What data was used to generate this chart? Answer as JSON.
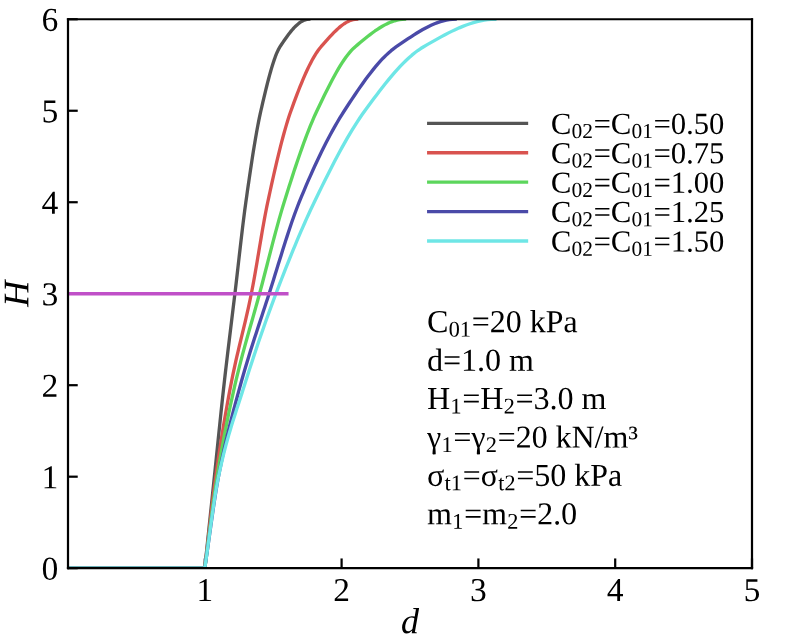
{
  "chart_data": {
    "type": "line",
    "xlabel": "d",
    "ylabel": "H",
    "xlim": [
      0,
      5
    ],
    "ylim": [
      0,
      6
    ],
    "xticks": [
      1,
      2,
      3,
      4,
      5
    ],
    "yticks": [
      0,
      1,
      2,
      3,
      4,
      5,
      6
    ],
    "grid": false,
    "legend": "top right",
    "marker": "none",
    "line_style": "solid",
    "series": [
      {
        "name": "C$_{02}$=C$_{01}$=0.50",
        "color": "#555555",
        "x": [
          0,
          1,
          1.07,
          1.14,
          1.22,
          1.3,
          1.41,
          1.55,
          1.76
        ],
        "values": [
          0,
          0,
          1,
          2,
          3,
          4,
          5,
          5.7,
          6
        ]
      },
      {
        "name": "C$_{02}$=C$_{01}$=0.75",
        "color": "#d9534f",
        "x": [
          0,
          1,
          1.08,
          1.19,
          1.34,
          1.46,
          1.63,
          1.85,
          2.11
        ],
        "values": [
          0,
          0,
          1,
          2,
          3,
          4,
          5,
          5.7,
          6
        ]
      },
      {
        "name": "C$_{02}$=C$_{01}$=1.00",
        "color": "#5cd65c",
        "x": [
          0,
          1,
          1.09,
          1.22,
          1.4,
          1.58,
          1.82,
          2.1,
          2.46
        ],
        "values": [
          0,
          0,
          1,
          2,
          3,
          4,
          5,
          5.7,
          6
        ]
      },
      {
        "name": "C$_{02}$=C$_{01}$=1.25",
        "color": "#4a4aa8",
        "x": [
          0,
          1,
          1.1,
          1.26,
          1.47,
          1.69,
          2.02,
          2.4,
          2.83
        ],
        "values": [
          0,
          0,
          1,
          2,
          3,
          4,
          5,
          5.7,
          6
        ]
      },
      {
        "name": "C$_{02}$=C$_{01}$=1.50",
        "color": "#6ee6e6",
        "x": [
          0,
          1,
          1.1,
          1.29,
          1.52,
          1.8,
          2.17,
          2.6,
          3.12
        ],
        "values": [
          0,
          0,
          1,
          2,
          3,
          4,
          5,
          5.7,
          6
        ]
      },
      {
        "color": "#c050c8",
        "x": [
          0,
          1.6
        ],
        "values": [
          3,
          3
        ]
      }
    ],
    "annotations": [
      "C$_{01}$=20 kPa",
      "d=1.0 m",
      "H$_{1}$=H$_{2}$=3.0 m",
      "γ$_{1}$=γ$_{2}$=20 kN/m³",
      "σ$_{t1}$=σ$_{t2}$=50 kPa",
      "m$_{1}$=m$_{2}$=2.0"
    ]
  }
}
